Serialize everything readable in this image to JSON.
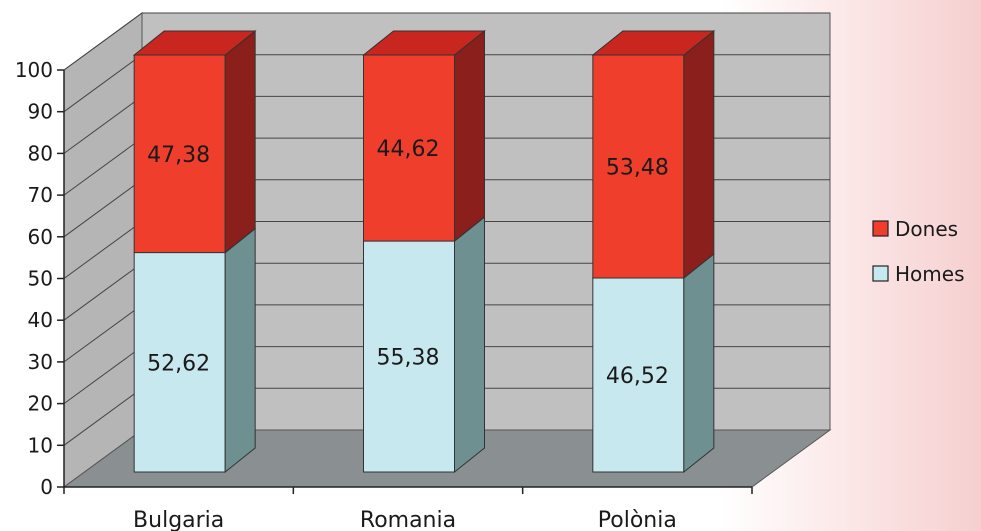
{
  "chart_data": {
    "type": "bar",
    "stacked": true,
    "three_d": true,
    "categories": [
      "Bulgaria",
      "Romania",
      "Polònia"
    ],
    "series": [
      {
        "name": "Homes",
        "values": [
          52.62,
          55.38,
          46.52
        ],
        "labels": [
          "52,62",
          "55,38",
          "46,52"
        ]
      },
      {
        "name": "Dones",
        "values": [
          47.38,
          44.62,
          53.48
        ],
        "labels": [
          "47,38",
          "44,62",
          "53,48"
        ]
      }
    ],
    "ylim": [
      0,
      100
    ],
    "yticks": [
      "0",
      "10",
      "20",
      "30",
      "40",
      "50",
      "60",
      "70",
      "80",
      "90",
      "100"
    ],
    "grid": true,
    "legend_position": "right",
    "legend": [
      "Dones",
      "Homes"
    ],
    "colors": {
      "Homes": {
        "front": "#c8e8ef",
        "side": "#6e9091",
        "top": "#b6d6dc"
      },
      "Dones": {
        "front": "#ef3f2c",
        "side": "#8a1f1b",
        "top": "#c8261f"
      },
      "back_wall": "#c0c0c0",
      "side_wall": "#b5b5b5",
      "floor": "#8a8f91"
    }
  }
}
